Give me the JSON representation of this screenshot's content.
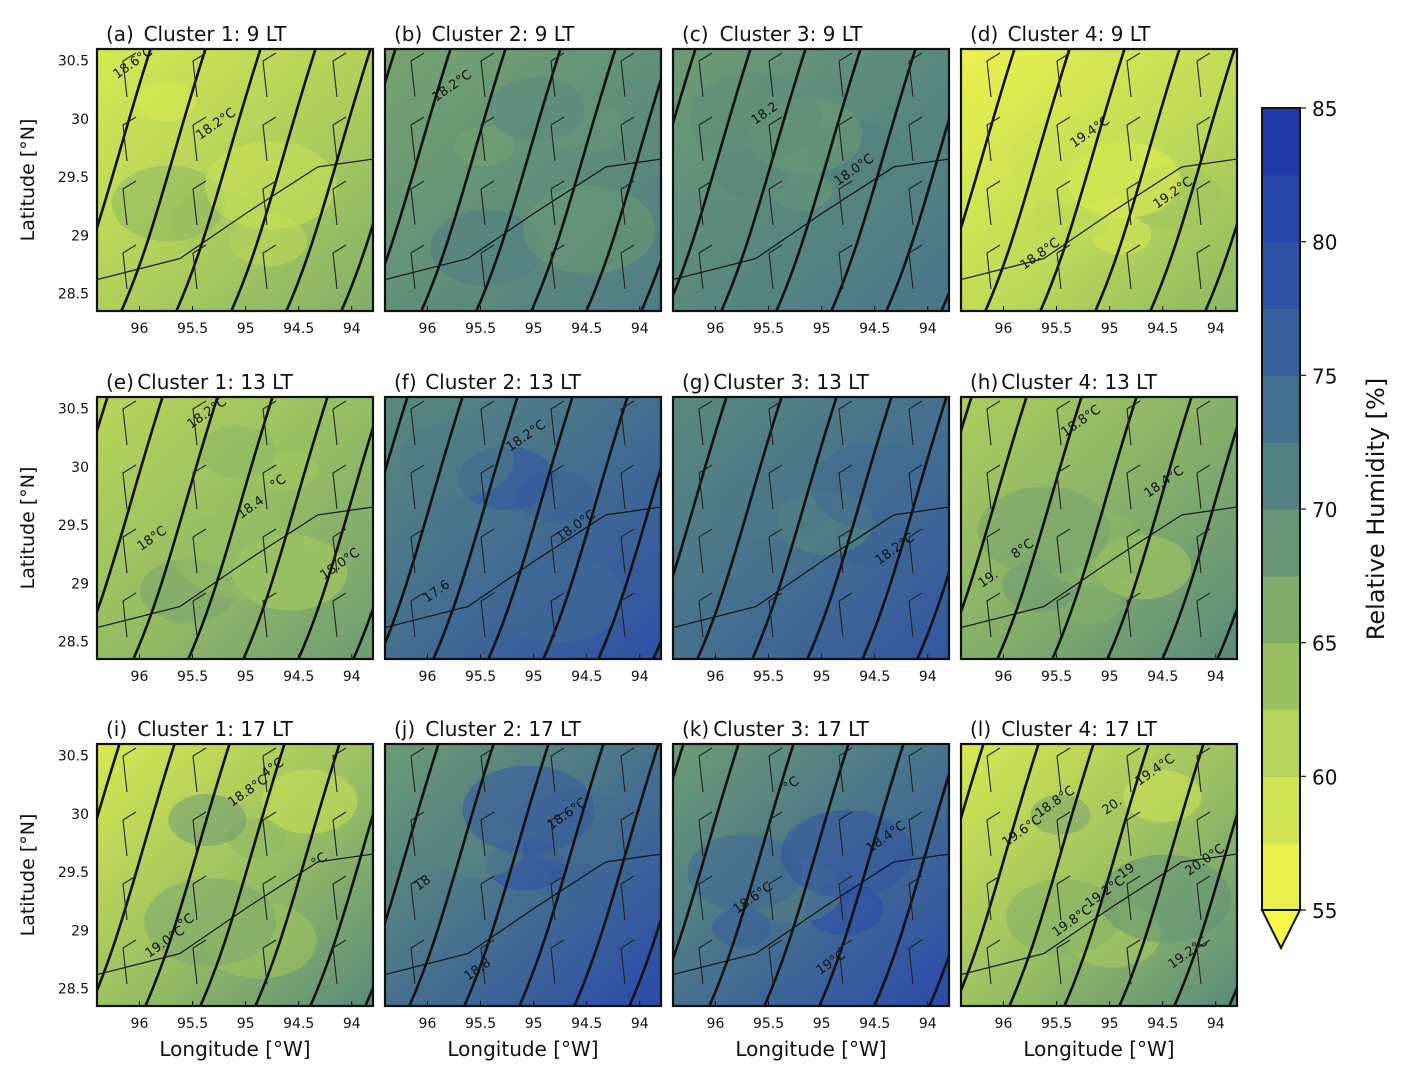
{
  "chart_data": {
    "type": "contour-map-grid",
    "xlabel": "Longitude [°W]",
    "ylabel": "Latitude [°N]",
    "x_ticks": [
      "96",
      "95.5",
      "95",
      "94.5",
      "94"
    ],
    "y_ticks": [
      "30.5",
      "30",
      "29.5",
      "29",
      "28.5"
    ],
    "x_tick_values": [
      96,
      95.5,
      95,
      94.5,
      94
    ],
    "y_tick_values": [
      30.5,
      30,
      29.5,
      29,
      28.5
    ],
    "xlim": [
      96.4,
      93.8
    ],
    "ylim": [
      28.35,
      30.6
    ],
    "colorbar": {
      "label": "Relative Humidity [%]",
      "ticks": [
        "55",
        "60",
        "65",
        "70",
        "75",
        "80",
        "85"
      ],
      "tick_values": [
        55,
        60,
        65,
        70,
        75,
        80,
        85
      ],
      "range": [
        55,
        85
      ],
      "extend": "min",
      "low_color": "#f7f74a",
      "high_color": "#1c35a8"
    },
    "panels": [
      {
        "letter": "(a)",
        "title": "Cluster 1: 9 LT",
        "rh": [
          58,
          66
        ],
        "contour_labels": [
          "18.6°C",
          "18.2°C"
        ]
      },
      {
        "letter": "(b)",
        "title": "Cluster 2: 9 LT",
        "rh": [
          67,
          72
        ],
        "contour_labels": [
          "18.2°C"
        ]
      },
      {
        "letter": "(c)",
        "title": "Cluster 3: 9 LT",
        "rh": [
          68,
          73
        ],
        "contour_labels": [
          "18.2",
          "18.0°C"
        ]
      },
      {
        "letter": "(d)",
        "title": "Cluster 4: 9 LT",
        "rh": [
          56,
          65
        ],
        "contour_labels": [
          "19.4°C",
          "19.2°C",
          "18.8°C"
        ]
      },
      {
        "letter": "(e)",
        "title": "Cluster 1: 13 LT",
        "rh": [
          61,
          68
        ],
        "contour_labels": [
          "18.4",
          "18.0°C",
          "18.2°C",
          "°C",
          "18°C"
        ]
      },
      {
        "letter": "(f)",
        "title": "Cluster 2: 13 LT",
        "rh": [
          70,
          79
        ],
        "contour_labels": [
          "18.0°C",
          "17.6",
          "18.2°C"
        ]
      },
      {
        "letter": "(g)",
        "title": "Cluster 3: 13 LT",
        "rh": [
          70,
          78
        ],
        "contour_labels": [
          "18.2°C"
        ]
      },
      {
        "letter": "(h)",
        "title": "Cluster 4: 13 LT",
        "rh": [
          62,
          70
        ],
        "contour_labels": [
          "19.",
          "18.8°C",
          "18.4°C",
          "8°C"
        ]
      },
      {
        "letter": "(i)",
        "title": "Cluster 1: 17 LT",
        "rh": [
          58,
          70
        ],
        "contour_labels": [
          "19.0°C",
          "18.8°C",
          "°C",
          "°C",
          "4°C"
        ]
      },
      {
        "letter": "(j)",
        "title": "Cluster 2: 17 LT",
        "rh": [
          68,
          80
        ],
        "contour_labels": [
          "18.8",
          "18.6°C",
          "18"
        ]
      },
      {
        "letter": "(k)",
        "title": "Cluster 3: 17 LT",
        "rh": [
          68,
          80
        ],
        "contour_labels": [
          "°C",
          "18.4°C",
          "18.6°C",
          "19°C"
        ]
      },
      {
        "letter": "(l)",
        "title": "Cluster 4: 17 LT",
        "rh": [
          58,
          70
        ],
        "contour_labels": [
          "20.",
          "20.0°C",
          "19.8°C",
          "19.4°C",
          "19.6°C",
          "19.2°C",
          "19.2°C",
          "18.8°C",
          "19"
        ]
      }
    ]
  }
}
